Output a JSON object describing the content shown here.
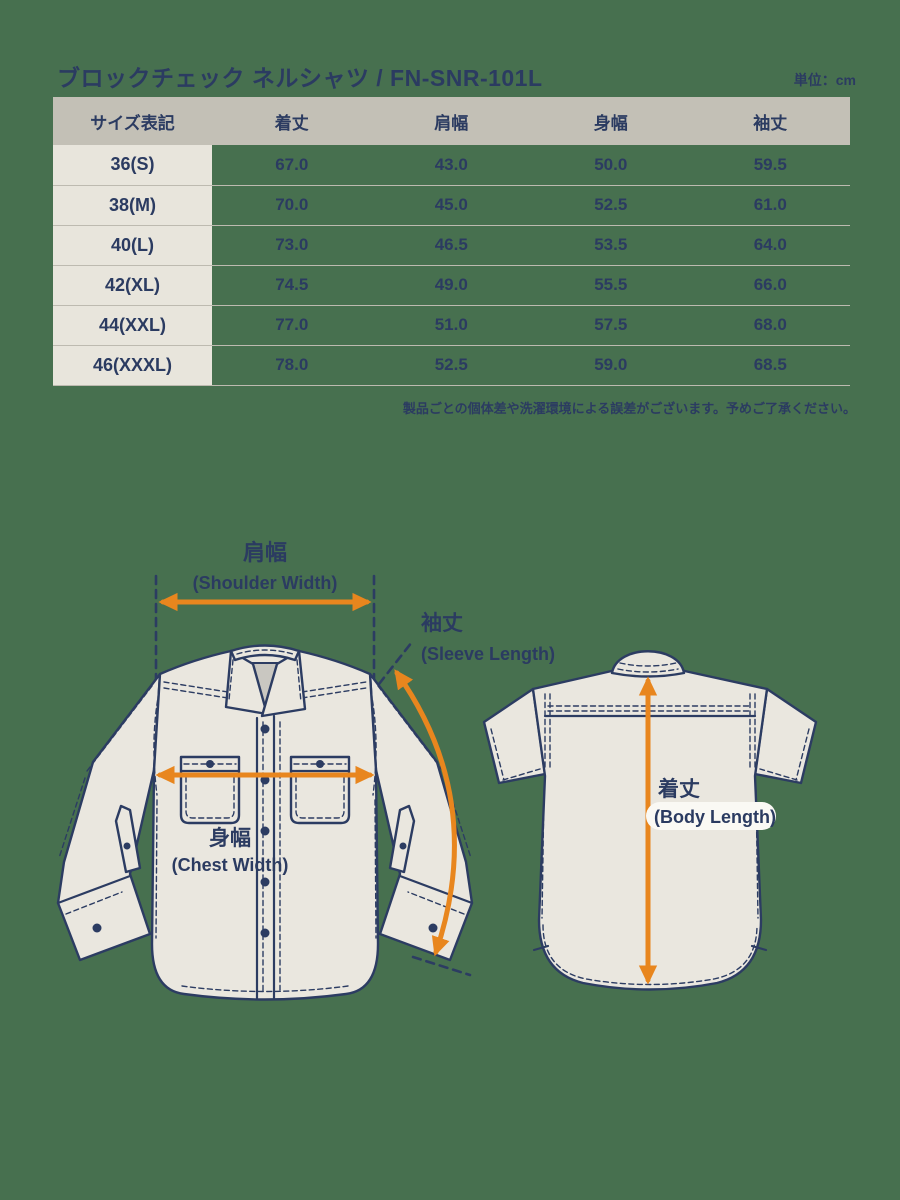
{
  "page": {
    "title": "ブロックチェック ネルシャツ / FN-SNR-101L",
    "unit_label": "単位：cm",
    "note": "製品ごとの個体差や洗濯環境による誤差がございます。予めご了承ください。"
  },
  "colors": {
    "background": "#47704F",
    "text_navy": "#2B3B61",
    "accent_orange": "#E8861E",
    "table_header_bg": "#C3C0B6",
    "size_column_bg": "#E8E5DC",
    "shirt_fill": "#EAE7DF"
  },
  "size_table": {
    "columns": [
      "サイズ表記",
      "着丈",
      "肩幅",
      "身幅",
      "袖丈"
    ],
    "rows": [
      {
        "label": "36(S)",
        "values": [
          "67.0",
          "43.0",
          "50.0",
          "59.5"
        ]
      },
      {
        "label": "38(M)",
        "values": [
          "70.0",
          "45.0",
          "52.5",
          "61.0"
        ]
      },
      {
        "label": "40(L)",
        "values": [
          "73.0",
          "46.5",
          "53.5",
          "64.0"
        ]
      },
      {
        "label": "42(XL)",
        "values": [
          "74.5",
          "49.0",
          "55.5",
          "66.0"
        ]
      },
      {
        "label": "44(XXL)",
        "values": [
          "77.0",
          "51.0",
          "57.5",
          "68.0"
        ]
      },
      {
        "label": "46(XXXL)",
        "values": [
          "78.0",
          "52.5",
          "59.0",
          "68.5"
        ]
      }
    ]
  },
  "diagram": {
    "shoulder_width_ja": "肩幅",
    "shoulder_width_en": "(Shoulder Width)",
    "sleeve_length_ja": "袖丈",
    "sleeve_length_en": "(Sleeve Length)",
    "chest_width_ja": "身幅",
    "chest_width_en": "(Chest Width)",
    "body_length_ja": "着丈",
    "body_length_en": "(Body Length)"
  }
}
